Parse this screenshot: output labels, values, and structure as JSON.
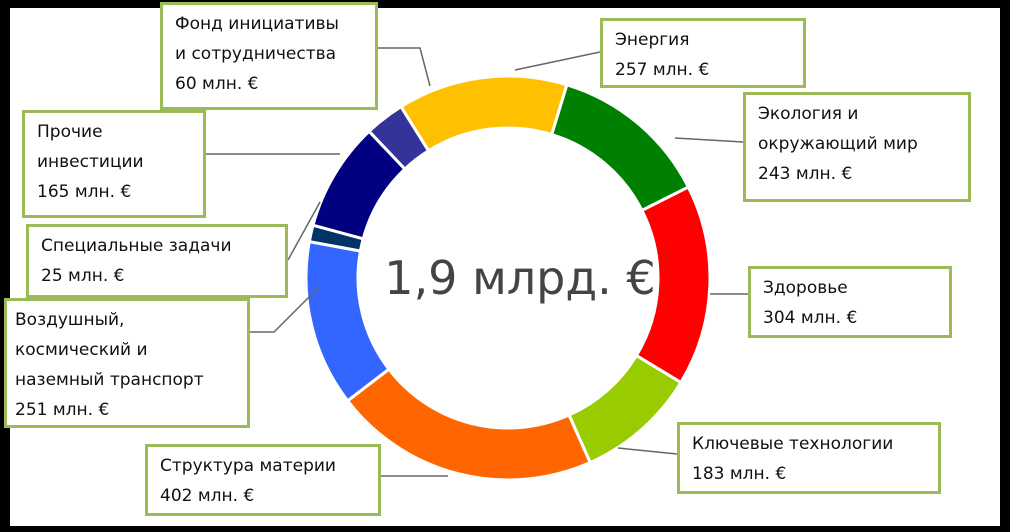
{
  "chart_data": {
    "type": "pie",
    "style": "donut",
    "center_label": "1,9 млрд. €",
    "slices": [
      {
        "name": "Энергия",
        "value_label": "257 млн. €",
        "value": 257,
        "color": "#ffc000"
      },
      {
        "name": "Экология и\nокружающий мир",
        "value_label": "243 млн. €",
        "value": 243,
        "color": "#008000"
      },
      {
        "name": "Здоровье",
        "value_label": "304 млн. €",
        "value": 304,
        "color": "#ff0000"
      },
      {
        "name": "Ключевые технологии",
        "value_label": "183 млн. €",
        "value": 183,
        "color": "#99cc00"
      },
      {
        "name": "Структура материи",
        "value_label": "402 млн. €",
        "value": 402,
        "color": "#ff6600"
      },
      {
        "name": "Воздушный,\nкосмический и\nназемный транспорт",
        "value_label": "251 млн. €",
        "value": 251,
        "color": "#3366ff"
      },
      {
        "name": "Специальные задачи",
        "value_label": "25 млн. €",
        "value": 25,
        "color": "#003366"
      },
      {
        "name": "Прочие\nинвестиции",
        "value_label": "165 млн. €",
        "value": 165,
        "color": "#000080"
      },
      {
        "name": "Фонд инициативы\nи сотрудничества",
        "value_label": "60 млн. €",
        "value": 60,
        "color": "#333399"
      }
    ]
  }
}
